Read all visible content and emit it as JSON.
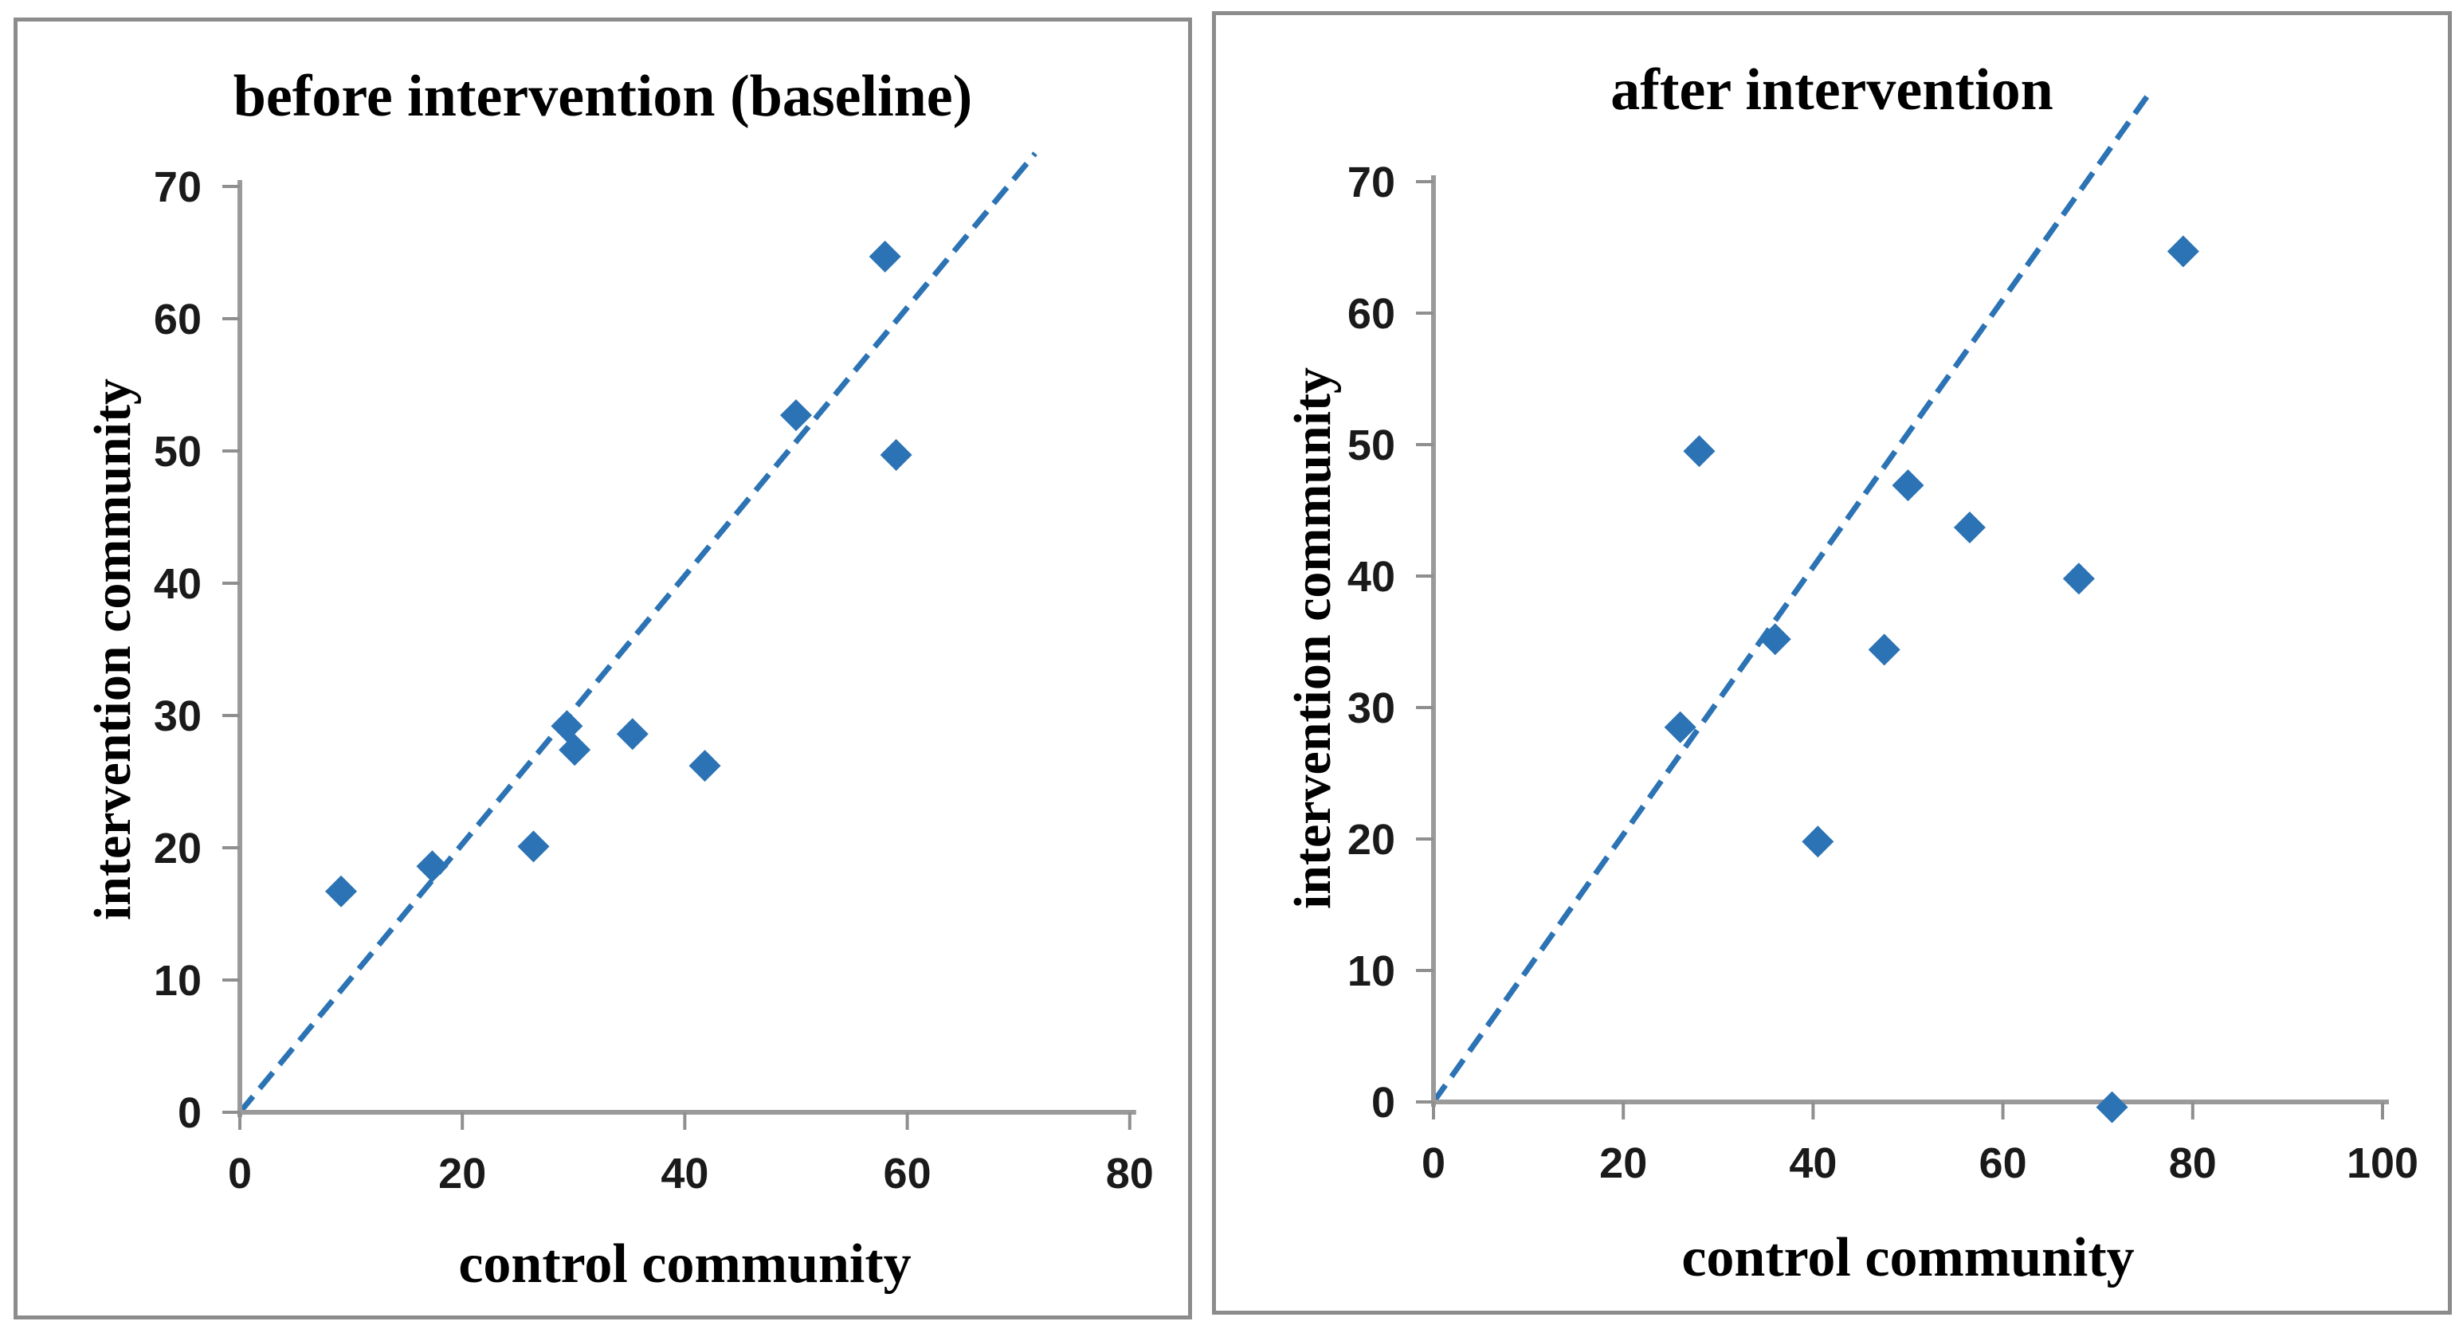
{
  "figure": {
    "background": "#ffffff",
    "panel_border_color": "#8C8C8C",
    "axis_color": "#9A9A9A",
    "tick_color": "#8F8F8F",
    "accent_blue": "#2B73B4"
  },
  "chart_data": [
    {
      "type": "scatter",
      "title": "before intervention (baseline)",
      "xlabel": "control community",
      "ylabel": "intervention community",
      "xlim": [
        0,
        80
      ],
      "ylim": [
        0,
        70
      ],
      "xticks": [
        0,
        20,
        40,
        60,
        80
      ],
      "yticks": [
        0,
        10,
        20,
        30,
        40,
        50,
        60,
        70
      ],
      "grid": false,
      "legend": "none",
      "marker": "diamond",
      "marker_color": "#2B73B4",
      "points": [
        {
          "x": 9.1,
          "y": 16.7
        },
        {
          "x": 17.3,
          "y": 18.6
        },
        {
          "x": 26.4,
          "y": 20.1
        },
        {
          "x": 29.4,
          "y": 29.2
        },
        {
          "x": 30.1,
          "y": 27.4
        },
        {
          "x": 35.3,
          "y": 28.6
        },
        {
          "x": 41.8,
          "y": 26.2
        },
        {
          "x": 50.0,
          "y": 52.7
        },
        {
          "x": 58.0,
          "y": 64.7
        },
        {
          "x": 59.0,
          "y": 49.7
        }
      ],
      "identity_line": {
        "style": "dashed",
        "color": "#2B73B4",
        "from": {
          "x": 0,
          "y": 0
        },
        "to": {
          "x": 71.5,
          "y": 72.5
        }
      }
    },
    {
      "type": "scatter",
      "title": "after intervention",
      "xlabel": "control community",
      "ylabel": "intervention community",
      "xlim": [
        0,
        100
      ],
      "ylim": [
        0,
        70
      ],
      "xticks": [
        0,
        20,
        40,
        60,
        80,
        100
      ],
      "yticks": [
        0,
        10,
        20,
        30,
        40,
        50,
        60,
        70
      ],
      "grid": false,
      "legend": "none",
      "marker": "diamond",
      "marker_color": "#2B73B4",
      "points": [
        {
          "x": 26.0,
          "y": 28.5
        },
        {
          "x": 28.0,
          "y": 49.5
        },
        {
          "x": 36.0,
          "y": 35.2
        },
        {
          "x": 40.5,
          "y": 19.8
        },
        {
          "x": 47.5,
          "y": 34.4
        },
        {
          "x": 50.0,
          "y": 46.9
        },
        {
          "x": 56.5,
          "y": 43.7
        },
        {
          "x": 68.0,
          "y": 39.8
        },
        {
          "x": 71.5,
          "y": -0.4
        },
        {
          "x": 79.0,
          "y": 64.7
        }
      ],
      "identity_line": {
        "style": "dashed",
        "color": "#2B73B4",
        "from": {
          "x": 0,
          "y": 0
        },
        "to": {
          "x": 75.5,
          "y": 76.8
        }
      }
    }
  ]
}
